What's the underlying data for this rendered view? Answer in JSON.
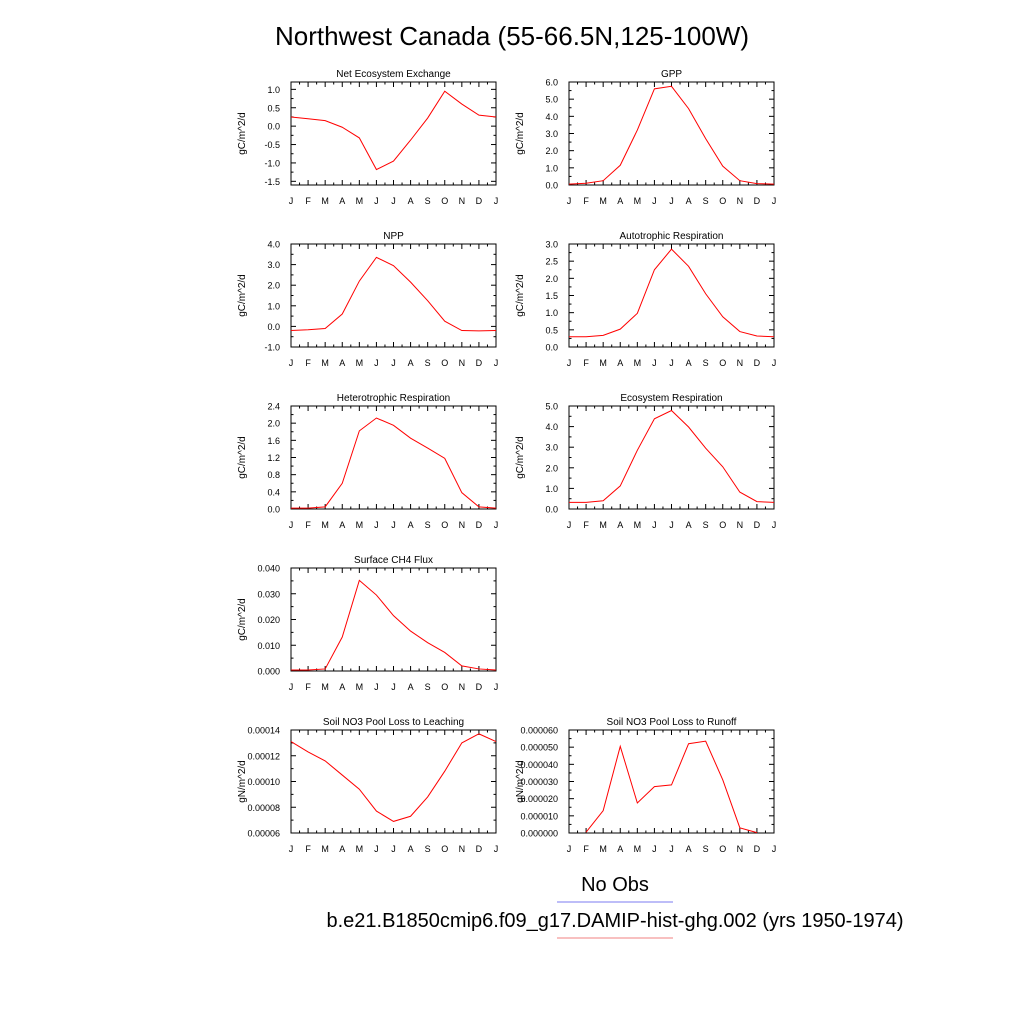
{
  "title": "Northwest Canada (55-66.5N,125-100W)",
  "legend": {
    "entries": [
      {
        "label": "No Obs",
        "color": "#7b7bf0"
      },
      {
        "label": "b.e21.B1850cmip6.f09_g17.DAMIP-hist-ghg.002 (yrs 1950-1974)",
        "color": "#f08080"
      }
    ]
  },
  "chart_data": [
    {
      "type": "line",
      "title": "Net Ecosystem Exchange",
      "ylabel": "gC/m^2/d",
      "categories": [
        "J",
        "F",
        "M",
        "A",
        "M",
        "J",
        "J",
        "A",
        "S",
        "O",
        "N",
        "D",
        "J"
      ],
      "ylim": [
        -1.6,
        1.2
      ],
      "yticks": [
        "1.0",
        "0.5",
        "0.0",
        "-0.5",
        "-1.0",
        "-1.5"
      ],
      "series": [
        {
          "color": "#ff0000",
          "values": [
            0.25,
            0.2,
            0.15,
            -0.03,
            -0.32,
            -1.18,
            -0.95,
            -0.38,
            0.22,
            0.95,
            0.6,
            0.3,
            0.25
          ]
        }
      ]
    },
    {
      "type": "line",
      "title": "GPP",
      "ylabel": "gC/m^2/d",
      "categories": [
        "J",
        "F",
        "M",
        "A",
        "M",
        "J",
        "J",
        "A",
        "S",
        "O",
        "N",
        "D",
        "J"
      ],
      "ylim": [
        0,
        6
      ],
      "yticks": [
        "6.0",
        "5.0",
        "4.0",
        "3.0",
        "2.0",
        "1.0",
        "0.0"
      ],
      "series": [
        {
          "color": "#ff0000",
          "values": [
            0.05,
            0.1,
            0.25,
            1.15,
            3.2,
            5.6,
            5.75,
            4.45,
            2.7,
            1.1,
            0.25,
            0.08,
            0.05
          ]
        }
      ]
    },
    {
      "type": "line",
      "title": "NPP",
      "ylabel": "gC/m^2/d",
      "categories": [
        "J",
        "F",
        "M",
        "A",
        "M",
        "J",
        "J",
        "A",
        "S",
        "O",
        "N",
        "D",
        "J"
      ],
      "ylim": [
        -1,
        4
      ],
      "yticks": [
        "4.0",
        "3.0",
        "2.0",
        "1.0",
        "0.0",
        "-1.0"
      ],
      "series": [
        {
          "color": "#ff0000",
          "values": [
            -0.2,
            -0.16,
            -0.1,
            0.6,
            2.2,
            3.35,
            2.95,
            2.15,
            1.25,
            0.25,
            -0.2,
            -0.22,
            -0.2
          ]
        }
      ]
    },
    {
      "type": "line",
      "title": "Autotrophic Respiration",
      "ylabel": "gC/m^2/d",
      "categories": [
        "J",
        "F",
        "M",
        "A",
        "M",
        "J",
        "J",
        "A",
        "S",
        "O",
        "N",
        "D",
        "J"
      ],
      "ylim": [
        0,
        3
      ],
      "yticks": [
        "3.0",
        "2.5",
        "2.0",
        "1.5",
        "1.0",
        "0.5",
        "0.0"
      ],
      "series": [
        {
          "color": "#ff0000",
          "values": [
            0.3,
            0.3,
            0.34,
            0.52,
            0.98,
            2.25,
            2.85,
            2.35,
            1.55,
            0.88,
            0.45,
            0.32,
            0.3
          ]
        }
      ]
    },
    {
      "type": "line",
      "title": "Heterotrophic Respiration",
      "ylabel": "gC/m^2/d",
      "categories": [
        "J",
        "F",
        "M",
        "A",
        "M",
        "J",
        "J",
        "A",
        "S",
        "O",
        "N",
        "D",
        "J"
      ],
      "ylim": [
        0,
        2.4
      ],
      "yticks": [
        "2.4",
        "2.0",
        "1.6",
        "1.2",
        "0.8",
        "0.4",
        "0.0"
      ],
      "series": [
        {
          "color": "#ff0000",
          "values": [
            0.02,
            0.02,
            0.05,
            0.6,
            1.82,
            2.12,
            1.95,
            1.65,
            1.42,
            1.18,
            0.38,
            0.05,
            0.02
          ]
        }
      ]
    },
    {
      "type": "line",
      "title": "Ecosystem Respiration",
      "ylabel": "gC/m^2/d",
      "categories": [
        "J",
        "F",
        "M",
        "A",
        "M",
        "J",
        "J",
        "A",
        "S",
        "O",
        "N",
        "D",
        "J"
      ],
      "ylim": [
        0,
        5
      ],
      "yticks": [
        "5.0",
        "4.0",
        "3.0",
        "2.0",
        "1.0",
        "0.0"
      ],
      "series": [
        {
          "color": "#ff0000",
          "values": [
            0.32,
            0.32,
            0.4,
            1.12,
            2.85,
            4.38,
            4.78,
            3.98,
            2.95,
            2.05,
            0.82,
            0.36,
            0.32
          ]
        }
      ]
    },
    {
      "type": "line",
      "title": "Surface CH4 Flux",
      "ylabel": "gC/m^2/d",
      "categories": [
        "J",
        "F",
        "M",
        "A",
        "M",
        "J",
        "J",
        "A",
        "S",
        "O",
        "N",
        "D",
        "J"
      ],
      "ylim": [
        0,
        0.04
      ],
      "yticks": [
        "0.040",
        "0.030",
        "0.020",
        "0.010",
        "0.000"
      ],
      "series": [
        {
          "color": "#ff0000",
          "values": [
            0.0004,
            0.0004,
            0.0008,
            0.0132,
            0.0352,
            0.0295,
            0.0215,
            0.0155,
            0.011,
            0.0072,
            0.002,
            0.0008,
            0.0004
          ]
        }
      ]
    },
    {
      "type": "line",
      "title": "Soil NO3 Pool Loss to Leaching",
      "ylabel": "gN/m^2/d",
      "categories": [
        "J",
        "F",
        "M",
        "A",
        "M",
        "J",
        "J",
        "A",
        "S",
        "O",
        "N",
        "D",
        "J"
      ],
      "ylim": [
        6e-05,
        0.00014
      ],
      "yticks": [
        "0.00014",
        "0.00012",
        "0.00010",
        "0.00008",
        "0.00006"
      ],
      "series": [
        {
          "color": "#ff0000",
          "values": [
            0.000131,
            0.000123,
            0.000116,
            0.000105,
            9.4e-05,
            7.7e-05,
            6.9e-05,
            7.3e-05,
            8.8e-05,
            0.000108,
            0.00013,
            0.000137,
            0.000131
          ]
        }
      ]
    },
    {
      "type": "line",
      "title": "Soil NO3 Pool Loss to Runoff",
      "ylabel": "gN/m^2/d",
      "categories": [
        "J",
        "F",
        "M",
        "A",
        "M",
        "J",
        "J",
        "A",
        "S",
        "O",
        "N",
        "D",
        "J"
      ],
      "ylim": [
        0,
        6e-05
      ],
      "yticks": [
        "0.000060",
        "0.000050",
        "0.000040",
        "0.000030",
        "0.000020",
        "0.000010",
        "0.000000"
      ],
      "series": [
        {
          "color": "#ff0000",
          "values": [
            null,
            5e-07,
            1.3e-05,
            5.05e-05,
            1.75e-05,
            2.7e-05,
            2.8e-05,
            5.2e-05,
            5.35e-05,
            3.1e-05,
            3e-06,
            2e-07,
            null
          ]
        }
      ]
    }
  ]
}
